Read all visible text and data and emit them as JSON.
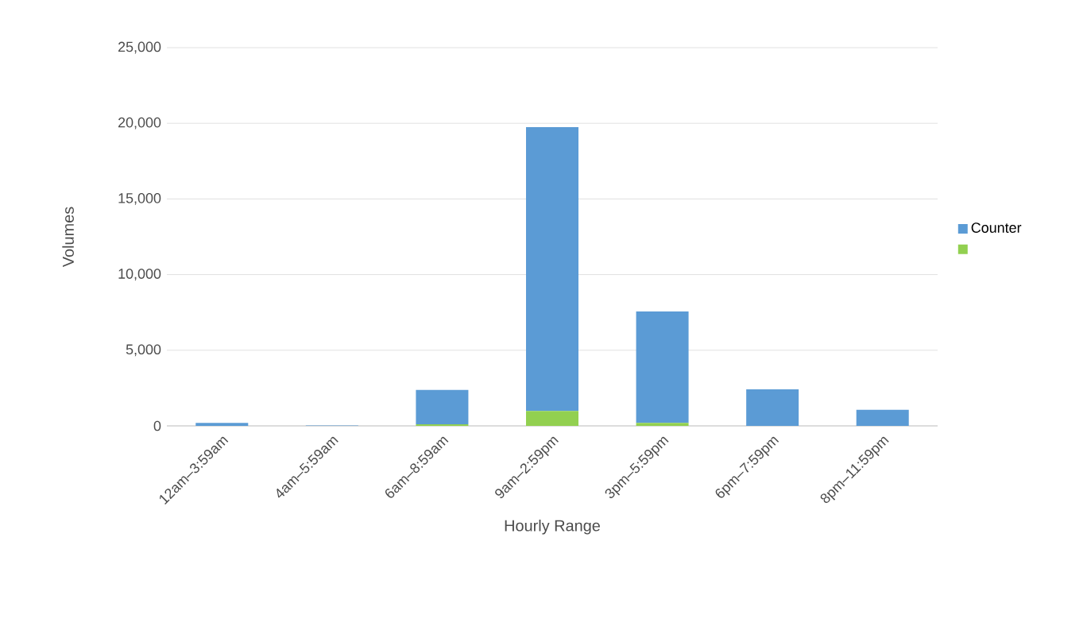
{
  "chart_data": {
    "type": "bar",
    "stacked": true,
    "xlabel": "Hourly Range",
    "ylabel": "Volumes",
    "categories": [
      "12am–3:59am",
      "4am–5:59am",
      "6am–8:59am",
      "9am–2:59pm",
      "3pm–5:59pm",
      "6pm–7:59pm",
      "8pm–11:59pm"
    ],
    "series": [
      {
        "color": "#92d050",
        "values": [
          null,
          null,
          100,
          980,
          200,
          null,
          null
        ]
      },
      {
        "name": "Counter",
        "color": "#5b9bd5",
        "values": [
          200,
          30,
          2280,
          18770,
          7360,
          2420,
          1070
        ]
      }
    ],
    "ylim": [
      0,
      25000
    ],
    "yticks": [
      {
        "value": 0,
        "label": "0"
      },
      {
        "value": 5000,
        "label": "5,000"
      },
      {
        "value": 10000,
        "label": "10,000"
      },
      {
        "value": 15000,
        "label": "15,000"
      },
      {
        "value": 20000,
        "label": "20,000"
      },
      {
        "value": 25000,
        "label": "25,000"
      }
    ],
    "grid": "y",
    "legend": "right"
  }
}
